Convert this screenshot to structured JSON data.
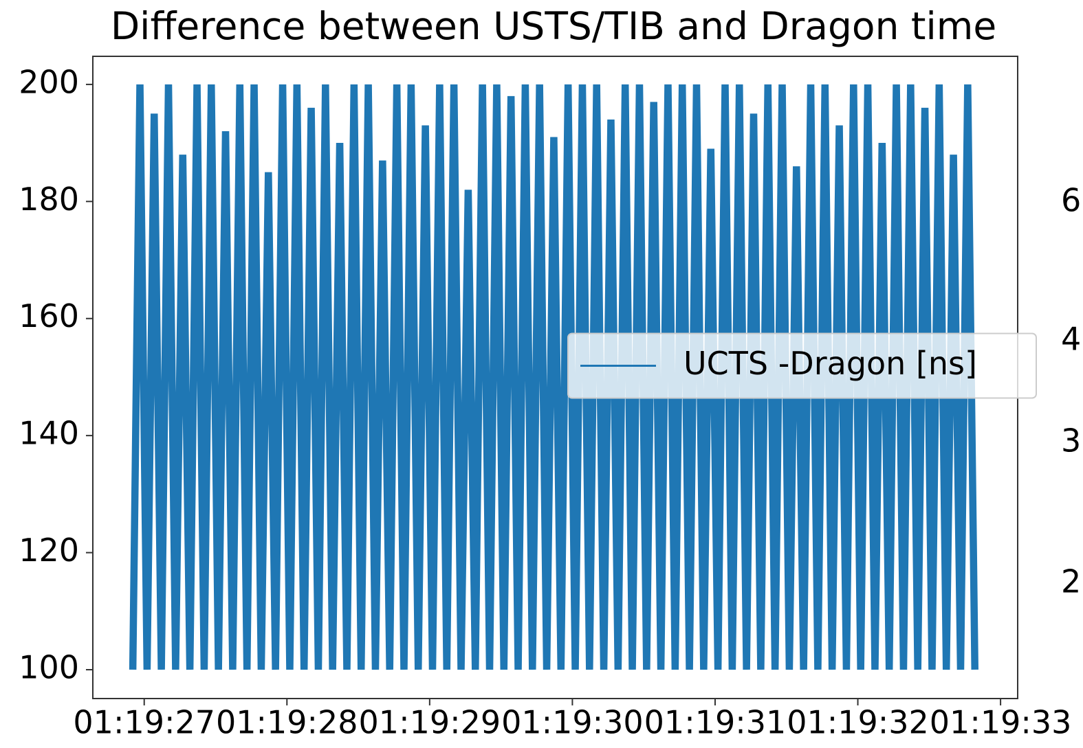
{
  "chart_data": {
    "type": "line",
    "title": "Difference between USTS/TIB and Dragon time",
    "x": [
      26.92,
      26.97,
      27.02,
      27.07,
      27.12,
      27.17,
      27.22,
      27.27,
      27.32,
      27.37,
      27.42,
      27.47,
      27.52,
      27.57,
      27.62,
      27.67,
      27.72,
      27.77,
      27.82,
      27.87,
      27.92,
      27.97,
      28.02,
      28.07,
      28.12,
      28.17,
      28.22,
      28.27,
      28.32,
      28.37,
      28.42,
      28.47,
      28.52,
      28.57,
      28.62,
      28.67,
      28.72,
      28.77,
      28.82,
      28.87,
      28.92,
      28.97,
      29.02,
      29.07,
      29.12,
      29.17,
      29.22,
      29.27,
      29.32,
      29.37,
      29.42,
      29.47,
      29.52,
      29.57,
      29.62,
      29.67,
      29.72,
      29.77,
      29.82,
      29.87,
      29.92,
      29.97,
      30.02,
      30.07,
      30.12,
      30.17,
      30.22,
      30.27,
      30.32,
      30.37,
      30.42,
      30.47,
      30.52,
      30.57,
      30.62,
      30.67,
      30.72,
      30.77,
      30.82,
      30.87,
      30.92,
      30.97,
      31.02,
      31.07,
      31.12,
      31.17,
      31.22,
      31.27,
      31.32,
      31.37,
      31.42,
      31.47,
      31.52,
      31.57,
      31.62,
      31.67,
      31.72,
      31.77,
      31.82,
      31.87,
      31.92,
      31.97,
      32.02,
      32.07,
      32.12,
      32.17,
      32.22,
      32.27,
      32.32,
      32.37,
      32.42,
      32.47,
      32.52,
      32.57,
      32.62,
      32.67,
      32.72,
      32.77,
      32.82
    ],
    "series": [
      {
        "name": "UCTS -Dragon [ns]",
        "color": "#1f77b4",
        "values": [
          100,
          200,
          100,
          195,
          100,
          200,
          100,
          188,
          100,
          200,
          100,
          200,
          100,
          192,
          100,
          200,
          100,
          200,
          100,
          185,
          100,
          200,
          100,
          200,
          100,
          196,
          100,
          200,
          100,
          190,
          100,
          200,
          100,
          200,
          100,
          187,
          100,
          200,
          100,
          200,
          100,
          193,
          100,
          200,
          100,
          200,
          100,
          182,
          100,
          200,
          100,
          200,
          100,
          198,
          100,
          200,
          100,
          200,
          100,
          191,
          100,
          200,
          100,
          200,
          100,
          200,
          100,
          194,
          100,
          200,
          100,
          200,
          100,
          197,
          100,
          200,
          100,
          200,
          100,
          200,
          100,
          189,
          100,
          200,
          100,
          200,
          100,
          195,
          100,
          200,
          100,
          200,
          100,
          186,
          100,
          200,
          100,
          200,
          100,
          193,
          100,
          200,
          100,
          200,
          100,
          190,
          100,
          200,
          100,
          200,
          100,
          196,
          100,
          200,
          100,
          188,
          100,
          200,
          100
        ]
      }
    ],
    "xlim": [
      26.64,
      33.12
    ],
    "xticks": [
      {
        "value": 27,
        "label": "01:19:27"
      },
      {
        "value": 28,
        "label": "01:19:28"
      },
      {
        "value": 29,
        "label": "01:19:29"
      },
      {
        "value": 30,
        "label": "01:19:30"
      },
      {
        "value": 31,
        "label": "01:19:31"
      },
      {
        "value": 32,
        "label": "01:19:32"
      },
      {
        "value": 33,
        "label": "01:19:33"
      }
    ],
    "ylim": [
      95.07,
      204.8
    ],
    "yticks": [
      100,
      120,
      140,
      160,
      180,
      200
    ],
    "legend": "center right",
    "grid": false,
    "right_edge_labels": [
      "6",
      "4",
      "3",
      "2"
    ]
  }
}
